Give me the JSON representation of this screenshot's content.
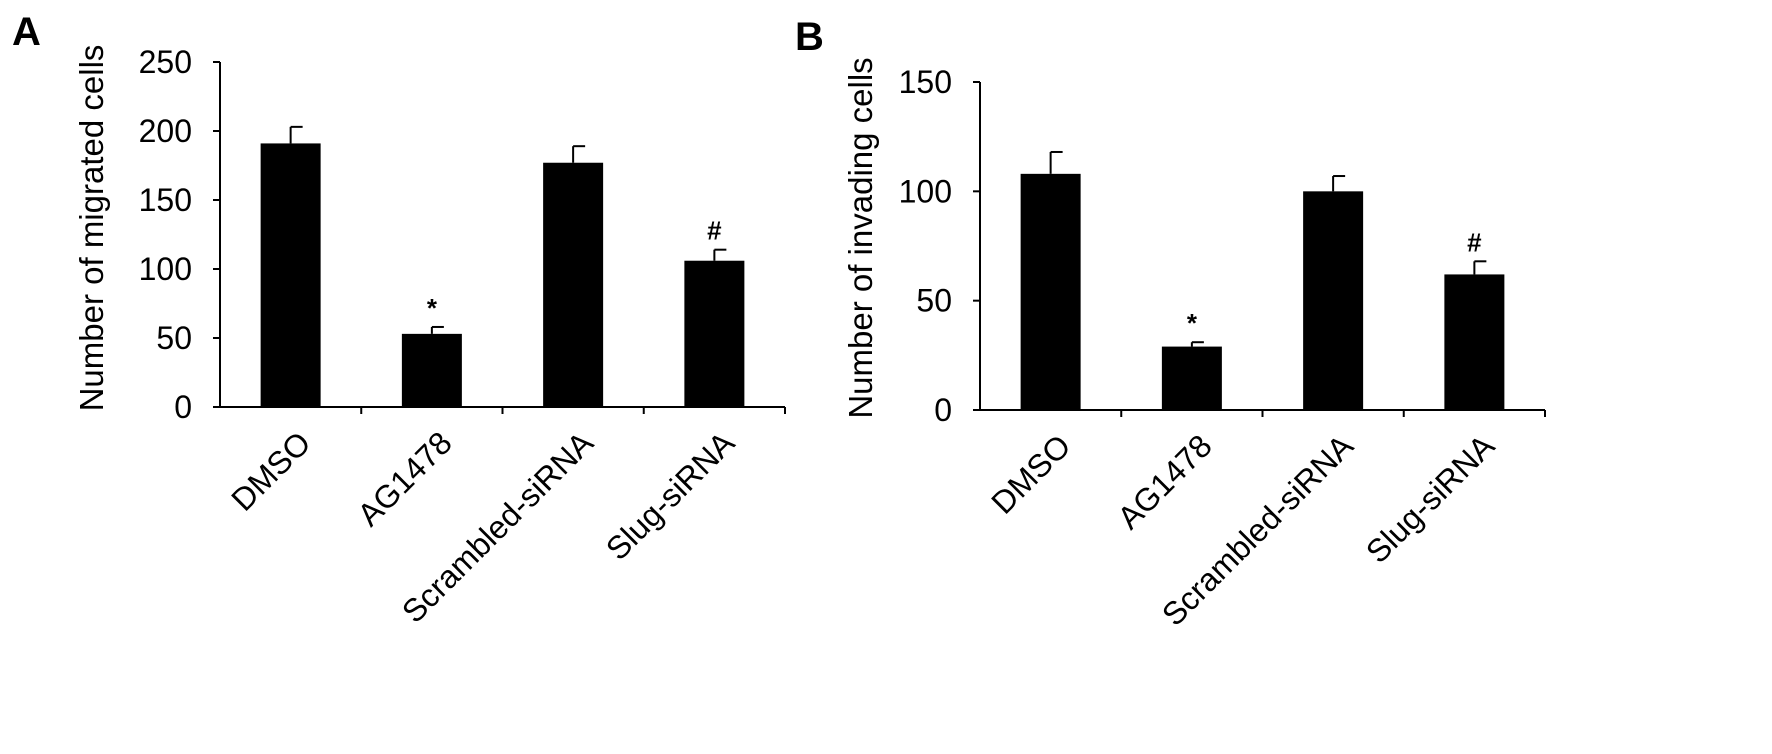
{
  "chart_data": [
    {
      "panel": "A",
      "type": "bar",
      "categories": [
        "DMSO",
        "AG1478",
        "Scrambled-siRNA",
        "Slug-siRNA"
      ],
      "values": [
        191,
        53,
        177,
        106
      ],
      "errors": [
        12,
        5,
        12,
        8
      ],
      "annotations": [
        "",
        "*",
        "",
        "#"
      ],
      "ylabel": "Number of migrated cells",
      "xlabel": "",
      "ylim": [
        0,
        250
      ],
      "yticks": [
        0,
        50,
        100,
        150,
        200,
        250
      ],
      "grid": false,
      "bar_color": "#000000"
    },
    {
      "panel": "B",
      "type": "bar",
      "categories": [
        "DMSO",
        "AG1478",
        "Scrambled-siRNA",
        "Slug-siRNA"
      ],
      "values": [
        108,
        29,
        100,
        62
      ],
      "errors": [
        10,
        2,
        7,
        6
      ],
      "annotations": [
        "",
        "*",
        "",
        "#"
      ],
      "ylabel": "Number of invading cells",
      "xlabel": "",
      "ylim": [
        0,
        150
      ],
      "yticks": [
        0,
        50,
        100,
        150
      ],
      "grid": false,
      "bar_color": "#000000"
    }
  ]
}
